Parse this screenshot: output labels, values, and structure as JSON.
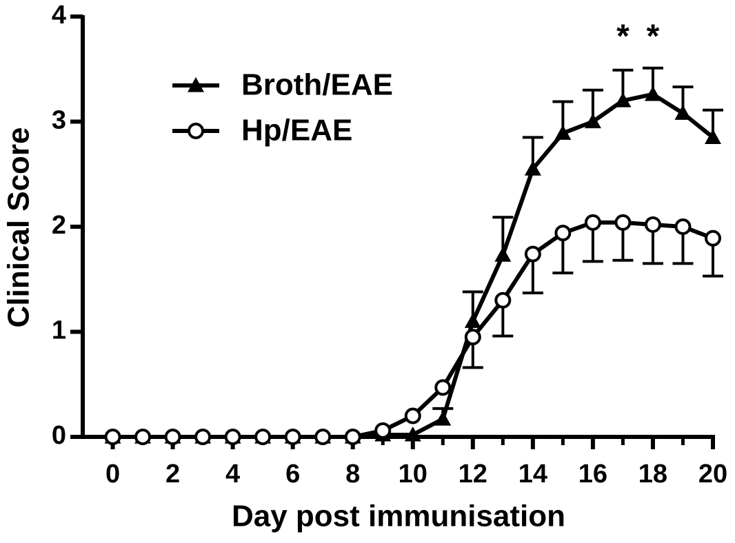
{
  "chart_data": {
    "type": "line",
    "x_label": "Day post immunisation",
    "y_label": "Clinical Score",
    "x": [
      0,
      1,
      2,
      3,
      4,
      5,
      6,
      7,
      8,
      9,
      10,
      11,
      12,
      13,
      14,
      15,
      16,
      17,
      18,
      19,
      20
    ],
    "series": [
      {
        "name": "Broth/EAE",
        "color": "#000000",
        "marker": "triangle",
        "error_direction": "up",
        "values": [
          0,
          0,
          0,
          0,
          0,
          0,
          0,
          0,
          0,
          0.02,
          0.02,
          0.17,
          1.1,
          1.73,
          2.55,
          2.89,
          3.0,
          3.2,
          3.26,
          3.08,
          2.85
        ],
        "errors": [
          null,
          null,
          null,
          null,
          null,
          null,
          null,
          null,
          null,
          null,
          null,
          0.1,
          0.28,
          0.36,
          0.3,
          0.3,
          0.3,
          0.29,
          0.25,
          0.25,
          0.26
        ]
      },
      {
        "name": "Hp/EAE",
        "color": "#000000",
        "marker": "circle",
        "error_direction": "down",
        "values": [
          0,
          0,
          0,
          0,
          0,
          0,
          0,
          0,
          0,
          0.06,
          0.2,
          0.47,
          0.95,
          1.3,
          1.74,
          1.94,
          2.04,
          2.04,
          2.02,
          2.0,
          1.89
        ],
        "errors": [
          null,
          null,
          null,
          null,
          null,
          null,
          null,
          null,
          null,
          null,
          null,
          null,
          0.29,
          0.34,
          0.37,
          0.38,
          0.37,
          0.36,
          0.37,
          0.35,
          0.36
        ]
      }
    ],
    "annotations": [
      {
        "text": "*",
        "x": 17
      },
      {
        "text": "*",
        "x": 18
      }
    ],
    "xlim": [
      -1,
      20
    ],
    "ylim": [
      0,
      4
    ],
    "xticks": [
      0,
      2,
      4,
      6,
      8,
      10,
      12,
      14,
      16,
      18,
      20
    ],
    "xminor_ticks": [
      1,
      3,
      5,
      7,
      9,
      11,
      13,
      15,
      17,
      19
    ],
    "yticks": [
      0,
      1,
      2,
      3,
      4
    ],
    "legend": "upper-left"
  }
}
